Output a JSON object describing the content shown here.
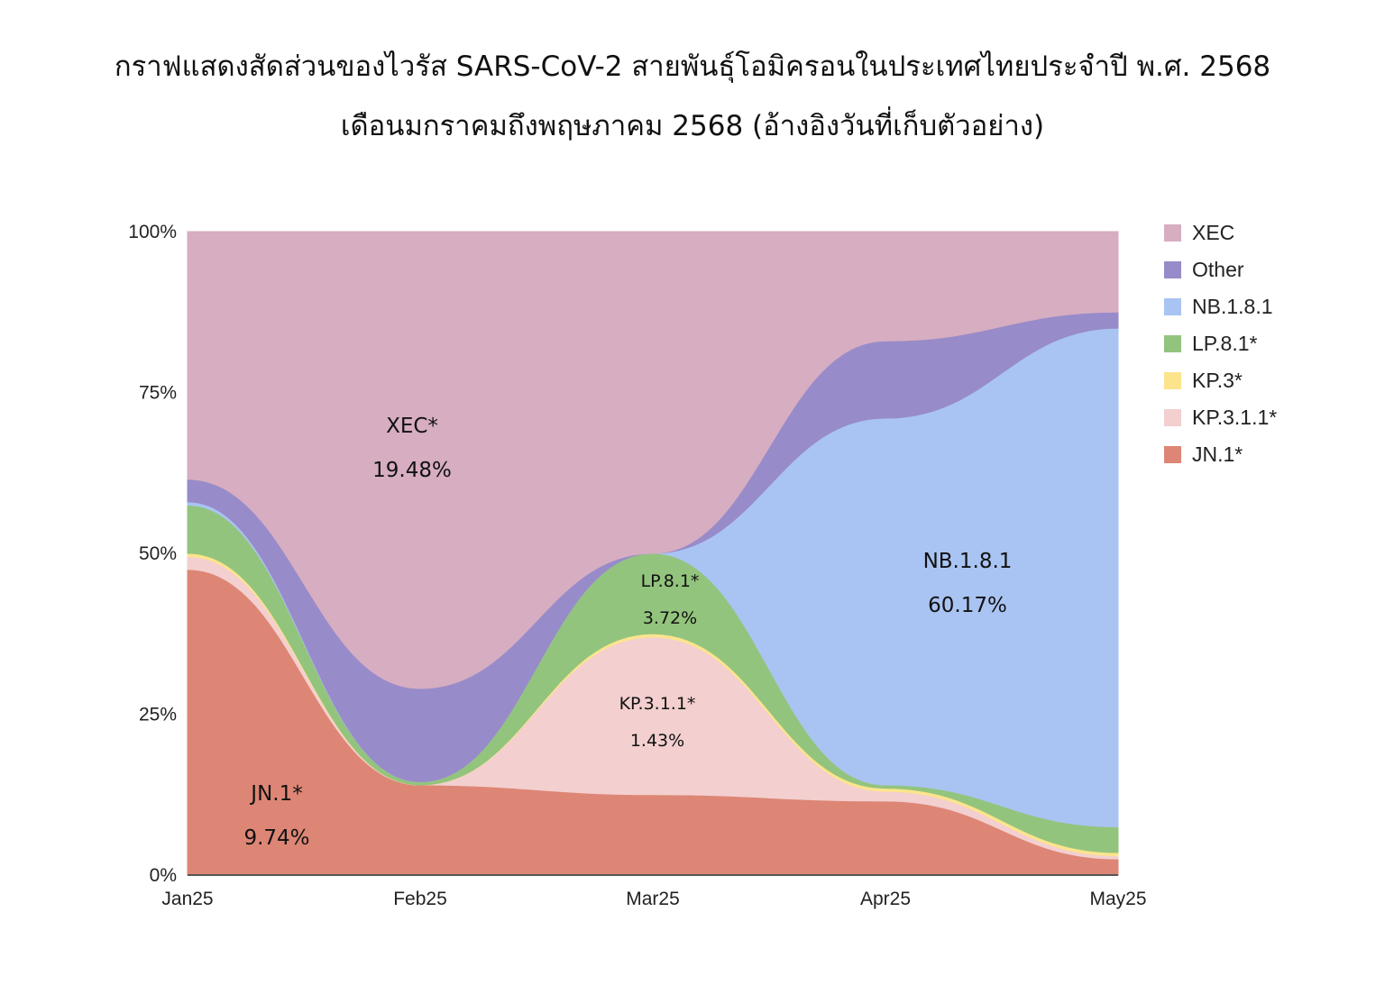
{
  "title": {
    "line1": "กราฟแสดงสัดส่วนของไวรัส SARS-CoV-2 สายพันธุ์โอมิครอนในประเทศไทยประจำปี พ.ศ. 2568",
    "line2": "เดือนมกราคมถึงพฤษภาคม 2568 (อ้างอิงวันที่เก็บตัวอย่าง)"
  },
  "chart_data": {
    "type": "area",
    "stacked": true,
    "x": [
      "Jan25",
      "Feb25",
      "Mar25",
      "Apr25",
      "May25"
    ],
    "ylim": [
      0,
      100
    ],
    "yticks": [
      "0%",
      "25%",
      "50%",
      "75%",
      "100%"
    ],
    "legend_position": "right",
    "series": [
      {
        "name": "JN.1*",
        "color": "#dd8675",
        "values": [
          47.5,
          14.0,
          12.5,
          11.5,
          2.5
        ]
      },
      {
        "name": "KP.3.1.1*",
        "color": "#f3cfcf",
        "values": [
          2.0,
          0.0,
          24.5,
          1.5,
          0.5
        ]
      },
      {
        "name": "KP.3*",
        "color": "#fce48d",
        "values": [
          0.5,
          0.0,
          0.5,
          0.5,
          0.5
        ]
      },
      {
        "name": "LP.8.1*",
        "color": "#93c47d",
        "values": [
          7.5,
          0.5,
          12.5,
          0.5,
          4.0
        ]
      },
      {
        "name": "NB.1.8.1",
        "color": "#a9c4f2",
        "values": [
          0.5,
          0.0,
          0.0,
          57.0,
          77.5
        ]
      },
      {
        "name": "Other",
        "color": "#988bc9",
        "values": [
          3.5,
          14.5,
          0.0,
          12.0,
          2.5
        ]
      },
      {
        "name": "XEC",
        "color": "#d6adc1",
        "values": [
          38.5,
          71.0,
          50.0,
          17.0,
          12.5
        ]
      }
    ],
    "legend_order": [
      "XEC",
      "Other",
      "NB.1.8.1",
      "LP.8.1*",
      "KP.3*",
      "KP.3.1.1*",
      "JN.1*"
    ],
    "annotations": [
      {
        "label": "XEC*",
        "value": "19.48%"
      },
      {
        "label": "NB.1.8.1",
        "value": "60.17%"
      },
      {
        "label": "LP.8.1*",
        "value": "3.72%"
      },
      {
        "label": "KP.3.1.1*",
        "value": "1.43%"
      },
      {
        "label": "JN.1*",
        "value": "9.74%"
      }
    ]
  }
}
